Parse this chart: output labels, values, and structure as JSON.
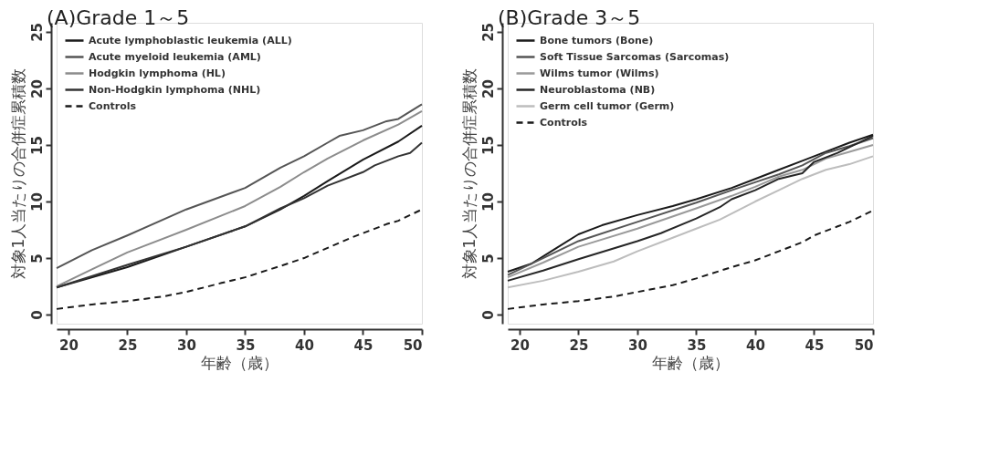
{
  "chart_data": [
    {
      "type": "line",
      "title": "(A)Grade 1～5",
      "xlabel": "年齢（歳）",
      "ylabel": "対象1人当たりの合併症累積数",
      "xlim": [
        19,
        50
      ],
      "ylim": [
        -0.8,
        25.8
      ],
      "xticks": [
        20,
        25,
        30,
        35,
        40,
        45,
        50
      ],
      "yticks": [
        0,
        5,
        10,
        15,
        20,
        25
      ],
      "grid": false,
      "legend": "top left",
      "marker": "none",
      "series": [
        {
          "name": "Acute lymphoblastic leukemia (ALL)",
          "color": "#1a1a1a",
          "line_style": "solid",
          "x": [
            19,
            25,
            30,
            35,
            38,
            40,
            42,
            45,
            48,
            50
          ],
          "values": [
            2.4,
            4.2,
            6.0,
            7.8,
            9.3,
            10.5,
            11.8,
            13.7,
            15.3,
            16.7
          ]
        },
        {
          "name": "Acute myeloid leukemia (AML)",
          "color": "#555555",
          "line_style": "solid",
          "x": [
            19,
            22,
            25,
            30,
            35,
            38,
            40,
            42,
            43,
            45,
            47,
            48,
            50
          ],
          "values": [
            4.1,
            5.7,
            7.0,
            9.3,
            11.2,
            13.0,
            14.0,
            15.2,
            15.8,
            16.3,
            17.1,
            17.3,
            18.6
          ]
        },
        {
          "name": "Hodgkin lymphoma (HL)",
          "color": "#8c8c8c",
          "line_style": "solid",
          "x": [
            19,
            22,
            25,
            30,
            35,
            38,
            40,
            42,
            45,
            48,
            50
          ],
          "values": [
            2.5,
            4.0,
            5.5,
            7.5,
            9.6,
            11.3,
            12.6,
            13.8,
            15.4,
            16.8,
            18.0
          ]
        },
        {
          "name": "Non-Hodgkin lymphoma (NHL)",
          "color": "#333333",
          "line_style": "solid",
          "x": [
            19,
            25,
            30,
            35,
            38,
            40,
            42,
            45,
            46,
            48,
            49,
            50
          ],
          "values": [
            2.4,
            4.4,
            6.0,
            7.8,
            9.4,
            10.3,
            11.4,
            12.6,
            13.2,
            14.0,
            14.3,
            15.2
          ]
        },
        {
          "name": "Controls",
          "color": "#1a1a1a",
          "line_style": "dashed",
          "x": [
            19,
            22,
            25,
            28,
            30,
            33,
            35,
            38,
            40,
            42,
            44,
            45,
            47,
            48,
            50
          ],
          "values": [
            0.5,
            0.9,
            1.2,
            1.6,
            2.0,
            2.8,
            3.3,
            4.3,
            5.0,
            5.9,
            6.8,
            7.2,
            8.0,
            8.3,
            9.3
          ]
        }
      ]
    },
    {
      "type": "line",
      "title": "(B)Grade 3～5",
      "xlabel": "年齢（歳）",
      "ylabel": "対象1人当たりの合併症累積数",
      "xlim": [
        19,
        50
      ],
      "ylim": [
        -0.8,
        25.8
      ],
      "xticks": [
        20,
        25,
        30,
        35,
        40,
        45,
        50
      ],
      "yticks": [
        0,
        5,
        10,
        15,
        20,
        25
      ],
      "grid": false,
      "legend": "top left",
      "marker": "none",
      "series": [
        {
          "name": "Bone tumors (Bone)",
          "color": "#1a1a1a",
          "line_style": "solid",
          "x": [
            19,
            21,
            23,
            25,
            27,
            30,
            33,
            35,
            38,
            40,
            42,
            44,
            46,
            48,
            50
          ],
          "values": [
            3.8,
            4.5,
            5.8,
            7.1,
            7.9,
            8.8,
            9.6,
            10.2,
            11.2,
            12.0,
            12.8,
            13.6,
            14.4,
            15.2,
            15.9
          ]
        },
        {
          "name": "Soft Tissue Sarcomas (Sarcomas)",
          "color": "#555555",
          "line_style": "solid",
          "x": [
            19,
            22,
            25,
            30,
            35,
            38,
            40,
            42,
            44,
            46,
            48,
            50
          ],
          "values": [
            3.5,
            5.0,
            6.5,
            8.2,
            9.9,
            11.0,
            11.7,
            12.4,
            13.2,
            14.3,
            14.9,
            15.6
          ]
        },
        {
          "name": "Wilms tumor (Wilms)",
          "color": "#9a9a9a",
          "line_style": "solid",
          "x": [
            19,
            22,
            25,
            30,
            35,
            38,
            40,
            42,
            44,
            46,
            48,
            50
          ],
          "values": [
            3.3,
            4.6,
            6.0,
            7.6,
            9.4,
            10.5,
            11.3,
            12.2,
            12.8,
            13.8,
            14.4,
            15.0
          ]
        },
        {
          "name": "Neuroblastoma (NB)",
          "color": "#262626",
          "line_style": "solid",
          "x": [
            19,
            22,
            25,
            30,
            32,
            35,
            37,
            38,
            40,
            42,
            44,
            45,
            47,
            48,
            50
          ],
          "values": [
            3.0,
            3.9,
            4.9,
            6.5,
            7.2,
            8.5,
            9.5,
            10.2,
            11.0,
            12.0,
            12.5,
            13.5,
            14.3,
            14.8,
            15.8
          ]
        },
        {
          "name": "Germ cell tumor (Germ)",
          "color": "#bdbdbd",
          "line_style": "solid",
          "x": [
            19,
            22,
            25,
            28,
            30,
            33,
            35,
            37,
            40,
            42,
            44,
            46,
            48,
            50
          ],
          "values": [
            2.4,
            3.0,
            3.8,
            4.7,
            5.6,
            6.8,
            7.6,
            8.4,
            10.0,
            11.0,
            12.0,
            12.8,
            13.3,
            14.0
          ]
        },
        {
          "name": "Controls",
          "color": "#1a1a1a",
          "line_style": "dashed",
          "x": [
            19,
            22,
            25,
            28,
            30,
            33,
            35,
            38,
            40,
            42,
            44,
            45,
            47,
            48,
            50
          ],
          "values": [
            0.5,
            0.9,
            1.2,
            1.6,
            2.0,
            2.6,
            3.2,
            4.2,
            4.8,
            5.6,
            6.4,
            7.0,
            7.8,
            8.2,
            9.2
          ]
        }
      ]
    }
  ]
}
